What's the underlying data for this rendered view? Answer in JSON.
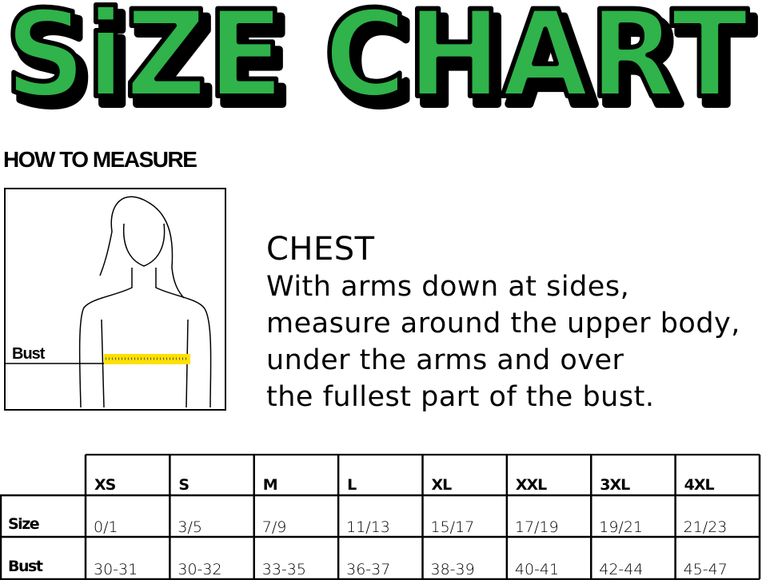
{
  "title": "SiZE CHART",
  "how_to_measure": "HOW TO MEASURE",
  "figure": {
    "label": "Bust"
  },
  "instructions": {
    "heading": "CHEST",
    "lines": [
      "With arms down at sides,",
      "measure around the upper body,",
      "under the arms and over",
      "the fullest part of the bust."
    ]
  },
  "table": {
    "columns": [
      "XS",
      "S",
      "M",
      "L",
      "XL",
      "XXL",
      "3XL",
      "4XL"
    ],
    "rows": [
      {
        "label": "Size",
        "cells": [
          "0/1",
          "3/5",
          "7/9",
          "11/13",
          "15/17",
          "17/19",
          "19/21",
          "21/23"
        ]
      },
      {
        "label": "Bust",
        "cells": [
          "30-31",
          "30-32",
          "33-35",
          "36-37",
          "38-39",
          "40-41",
          "42-44",
          "45-47"
        ]
      }
    ]
  }
}
